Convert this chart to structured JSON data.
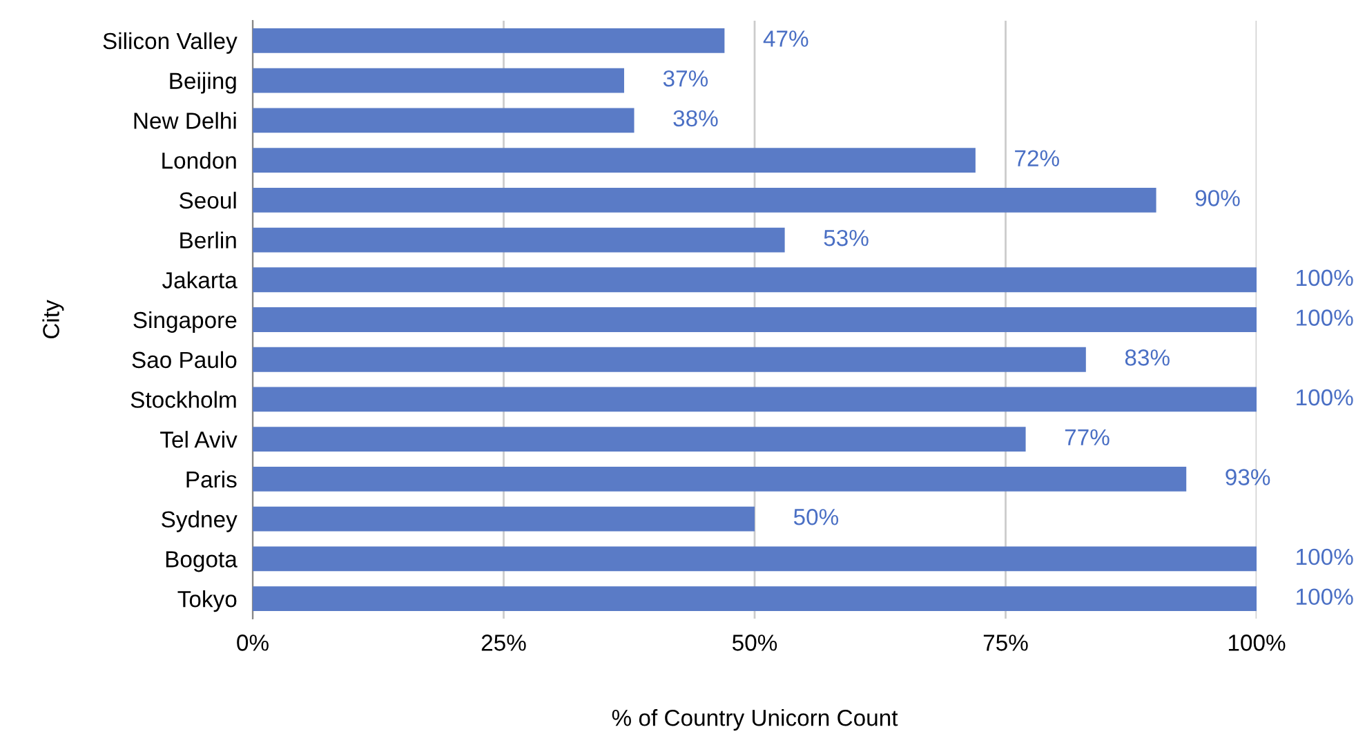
{
  "chart_data": {
    "type": "bar",
    "orientation": "horizontal",
    "xlabel": "% of Country Unicorn Count",
    "ylabel": "City",
    "categories": [
      "Silicon Valley",
      "Beijing",
      "New Delhi",
      "London",
      "Seoul",
      "Berlin",
      "Jakarta",
      "Singapore",
      "Sao Paulo",
      "Stockholm",
      "Tel Aviv",
      "Paris",
      "Sydney",
      "Bogota",
      "Tokyo"
    ],
    "values": [
      47,
      37,
      38,
      72,
      90,
      53,
      100,
      100,
      83,
      100,
      77,
      93,
      50,
      100,
      100
    ],
    "value_labels": [
      "47%",
      "37%",
      "38%",
      "72%",
      "90%",
      "53%",
      "100%",
      "100%",
      "83%",
      "100%",
      "77%",
      "93%",
      "50%",
      "100%",
      "100%"
    ],
    "color": "#5a7bc6",
    "xlim": [
      0,
      100
    ],
    "xticks": [
      {
        "value": 0,
        "label": "0%"
      },
      {
        "value": 25,
        "label": "25%"
      },
      {
        "value": 50,
        "label": "50%"
      },
      {
        "value": 75,
        "label": "75%"
      },
      {
        "value": 100,
        "label": "100%"
      }
    ],
    "grid": "x",
    "legend": false
  }
}
